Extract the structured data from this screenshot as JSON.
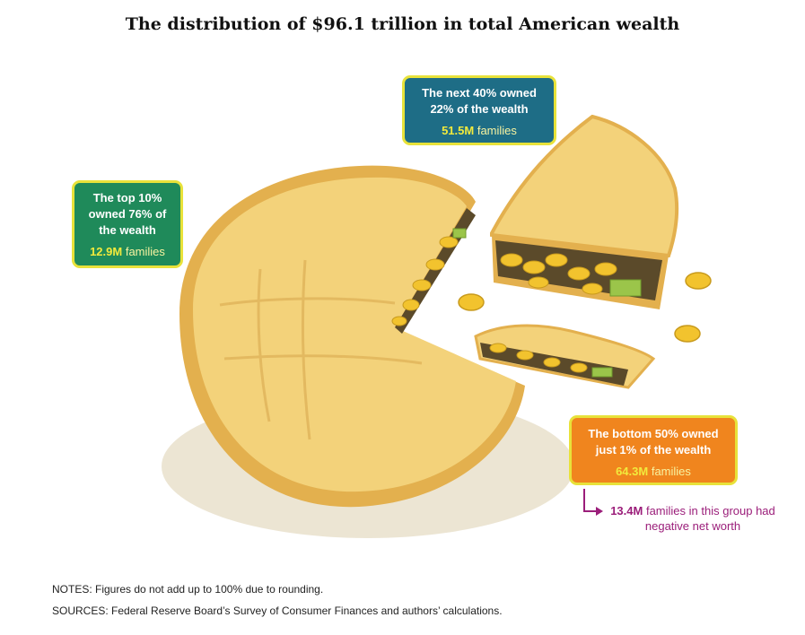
{
  "chart_data": {
    "type": "pie",
    "title": "The distribution of $96.1 trillion in total American wealth",
    "slices": [
      {
        "group": "The top 10%",
        "label": "The top 10% owned 76% of the wealth",
        "value": 76,
        "families": "12.9M",
        "families_unit": "families",
        "color": "#1f8a5a"
      },
      {
        "group": "The next 40%",
        "label": "The next 40% owned 22% of the wealth",
        "value": 22,
        "families": "51.5M",
        "families_unit": "families",
        "color": "#1e6d86"
      },
      {
        "group": "The bottom 50%",
        "label": "The bottom 50% owned just 1% of the wealth",
        "value": 1,
        "families": "64.3M",
        "families_unit": "families",
        "color": "#f0851e"
      }
    ],
    "annotation": {
      "number": "13.4M",
      "text": "families in this group had negative net worth",
      "color": "#9b1e7a"
    },
    "notes": "NOTES: Figures do not add up to 100% due to rounding.",
    "sources": "SOURCES: Federal Reserve Board’s Survey of Consumer Finances and authors’ calculations."
  },
  "callouts": {
    "top": {
      "line1": "The top 10%",
      "line2": "owned 76% of",
      "line3": "the wealth"
    },
    "mid": {
      "line1": "The next 40% owned",
      "line2": "22% of the wealth"
    },
    "bot": {
      "line1": "The bottom 50% owned",
      "line2": "just 1% of the wealth"
    }
  },
  "colors": {
    "crust": "#f3d27a",
    "crust_edge": "#e3b04e",
    "coin": "#f2c32e",
    "cash": "#9bc54a",
    "filling": "#5b4a2a"
  }
}
